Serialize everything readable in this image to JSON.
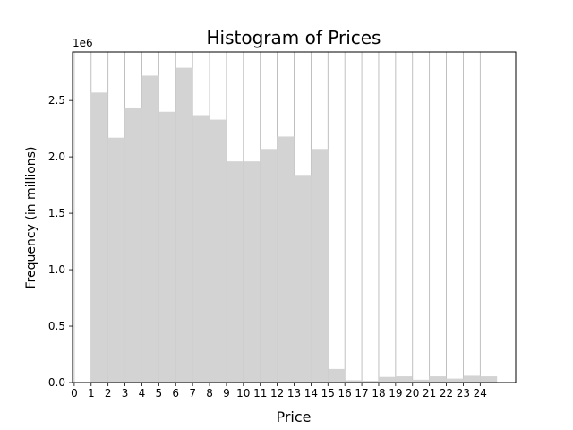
{
  "chart_data": {
    "type": "bar",
    "title": "Histogram of Prices",
    "xlabel": "Price",
    "ylabel": "Frequency (in millions)",
    "y_offset_label": "1e6",
    "xlim": [
      -0.1,
      26.1
    ],
    "ylim": [
      0,
      2.93
    ],
    "grid": {
      "x": true,
      "y": false
    },
    "bar_color": "#d3d3d3",
    "x_ticks": [
      "0",
      "1",
      "2",
      "3",
      "4",
      "5",
      "6",
      "7",
      "8",
      "9",
      "10",
      "11",
      "12",
      "13",
      "14",
      "15",
      "16",
      "17",
      "18",
      "19",
      "20",
      "21",
      "22",
      "23",
      "24"
    ],
    "y_ticks": [
      "0.0",
      "0.5",
      "1.0",
      "1.5",
      "2.0",
      "2.5"
    ],
    "bins": [
      {
        "x0": 1,
        "x1": 2,
        "value": 2.57
      },
      {
        "x0": 2,
        "x1": 3,
        "value": 2.17
      },
      {
        "x0": 3,
        "x1": 4,
        "value": 2.43
      },
      {
        "x0": 4,
        "x1": 5,
        "value": 2.72
      },
      {
        "x0": 5,
        "x1": 6,
        "value": 2.4
      },
      {
        "x0": 6,
        "x1": 7,
        "value": 2.79
      },
      {
        "x0": 7,
        "x1": 8,
        "value": 2.37
      },
      {
        "x0": 8,
        "x1": 9,
        "value": 2.33
      },
      {
        "x0": 9,
        "x1": 10,
        "value": 1.96
      },
      {
        "x0": 10,
        "x1": 11,
        "value": 1.96
      },
      {
        "x0": 11,
        "x1": 12,
        "value": 2.07
      },
      {
        "x0": 12,
        "x1": 13,
        "value": 2.18
      },
      {
        "x0": 13,
        "x1": 14,
        "value": 1.84
      },
      {
        "x0": 14,
        "x1": 15,
        "value": 2.07
      },
      {
        "x0": 15,
        "x1": 16,
        "value": 0.12
      },
      {
        "x0": 16,
        "x1": 17,
        "value": 0.02
      },
      {
        "x0": 17,
        "x1": 18,
        "value": 0.015
      },
      {
        "x0": 18,
        "x1": 19,
        "value": 0.05
      },
      {
        "x0": 19,
        "x1": 20,
        "value": 0.055
      },
      {
        "x0": 20,
        "x1": 21,
        "value": 0.025
      },
      {
        "x0": 21,
        "x1": 22,
        "value": 0.055
      },
      {
        "x0": 22,
        "x1": 23,
        "value": 0.035
      },
      {
        "x0": 23,
        "x1": 24,
        "value": 0.06
      },
      {
        "x0": 24,
        "x1": 25,
        "value": 0.055
      }
    ]
  }
}
